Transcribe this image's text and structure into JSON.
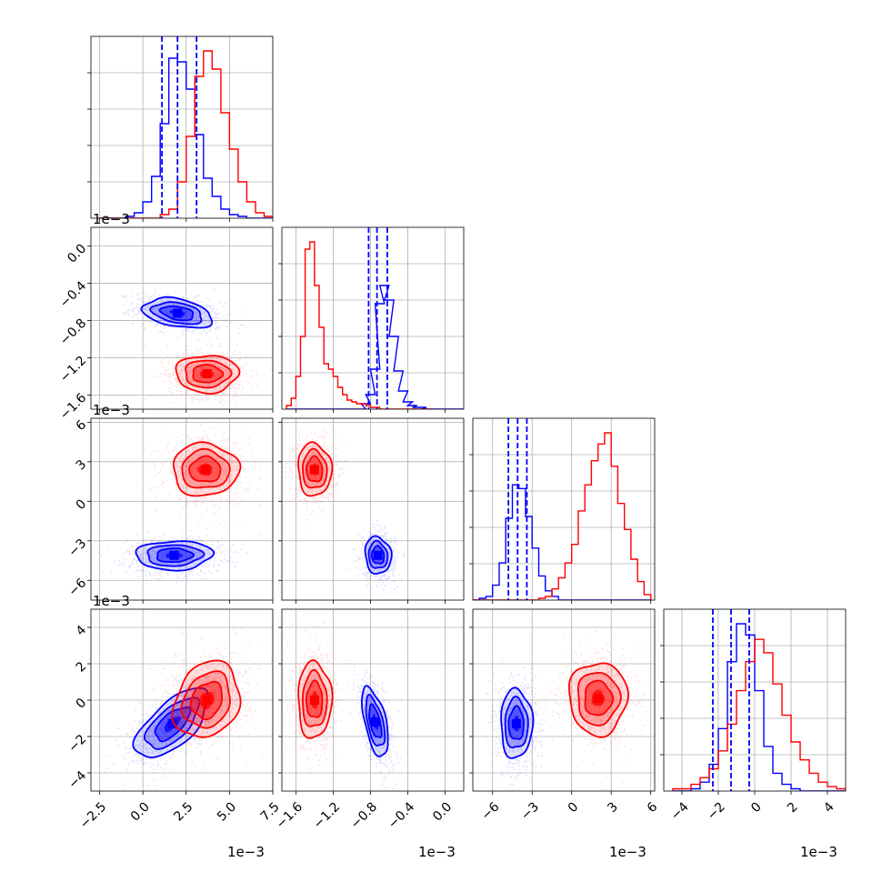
{
  "chart_data": {
    "type": "corner",
    "colors": {
      "blue": "#0000ff",
      "red": "#ff0000",
      "grid": "#b0b0b0"
    },
    "axes": {
      "v1": {
        "lim": [
          -3.0,
          7.5
        ],
        "ticks": [
          "-2.5",
          "0.0",
          "2.5",
          "5.0",
          "7.5"
        ],
        "tickvals": [
          -2.5,
          0,
          2.5,
          5,
          7.5
        ],
        "offset": "1e−3"
      },
      "v2": {
        "lim": [
          -1.75,
          0.2
        ],
        "ticks": [
          "-1.6",
          "-1.2",
          "-0.8",
          "-0.4",
          "0.0"
        ],
        "tickvals": [
          -1.6,
          -1.2,
          -0.8,
          -0.4,
          0.0
        ],
        "offset": "1e−3"
      },
      "v3": {
        "lim": [
          -7.5,
          6.3
        ],
        "ticks": [
          "-6",
          "-3",
          "0",
          "3",
          "6"
        ],
        "tickvals": [
          -6,
          -3,
          0,
          3,
          6
        ],
        "offset": "1e−3"
      },
      "v4": {
        "lim": [
          -5.0,
          5.0
        ],
        "ticks": [
          "-4",
          "-2",
          "0",
          "2",
          "4"
        ],
        "tickvals": [
          -4,
          -2,
          0,
          2,
          4
        ],
        "offset": "1e−3"
      }
    },
    "blobs": {
      "v1,v2": {
        "blue": {
          "mu": [
            2.0,
            -0.72
          ],
          "sd": [
            1.0,
            0.08
          ],
          "rho": -0.35
        },
        "red": {
          "mu": [
            3.7,
            -1.37
          ],
          "sd": [
            0.9,
            0.1
          ],
          "rho": 0.0
        }
      },
      "v1,v3": {
        "blue": {
          "mu": [
            1.8,
            -4.1
          ],
          "sd": [
            1.1,
            0.55
          ],
          "rho": 0.05
        },
        "red": {
          "mu": [
            3.6,
            2.4
          ],
          "sd": [
            0.95,
            1.0
          ],
          "rho": 0.0
        }
      },
      "v2,v3": {
        "blue": {
          "mu": [
            -0.72,
            -4.1
          ],
          "sd": [
            0.07,
            0.7
          ],
          "rho": -0.1
        },
        "red": {
          "mu": [
            -1.4,
            2.4
          ],
          "sd": [
            0.09,
            1.0
          ],
          "rho": -0.05
        }
      },
      "v1,v4": {
        "blue": {
          "mu": [
            1.7,
            -1.3
          ],
          "sd": [
            1.05,
            0.95
          ],
          "rho": 0.65
        },
        "red": {
          "mu": [
            3.7,
            0.0
          ],
          "sd": [
            0.95,
            1.05
          ],
          "rho": 0.2
        }
      },
      "v2,v4": {
        "blue": {
          "mu": [
            -0.75,
            -1.2
          ],
          "sd": [
            0.07,
            0.95
          ],
          "rho": -0.55
        },
        "red": {
          "mu": [
            -1.4,
            0.0
          ],
          "sd": [
            0.09,
            1.05
          ],
          "rho": 0.0
        }
      },
      "v3,v4": {
        "blue": {
          "mu": [
            -4.2,
            -1.3
          ],
          "sd": [
            0.6,
            0.95
          ],
          "rho": 0.0
        },
        "red": {
          "mu": [
            2.0,
            0.1
          ],
          "sd": [
            1.1,
            1.0
          ],
          "rho": 0.0
        }
      }
    },
    "marginals": {
      "v1": {
        "blue": {
          "x": [
            -2.5,
            -2,
            -1.5,
            -1,
            -0.5,
            0,
            0.5,
            1,
            1.5,
            2,
            2.5,
            3,
            3.5,
            4,
            4.5,
            5,
            5.5,
            6,
            6.5,
            7
          ],
          "y": [
            0,
            0,
            0,
            1,
            3,
            9,
            23,
            52,
            88,
            86,
            71,
            46,
            22,
            12,
            5,
            2,
            1,
            0,
            0,
            0
          ]
        },
        "red": {
          "x": [
            -2.5,
            -2,
            -1.5,
            -1,
            -0.5,
            0,
            0.5,
            1,
            1.5,
            2,
            2.5,
            3,
            3.5,
            4,
            4.5,
            5,
            5.5,
            6,
            6.5,
            7
          ],
          "y": [
            0,
            0,
            0,
            0,
            0,
            0,
            0,
            2,
            5,
            20,
            45,
            78,
            92,
            82,
            58,
            38,
            20,
            9,
            3,
            1
          ]
        },
        "quantiles": [
          1.1,
          2.0,
          3.1
        ]
      },
      "v2": {
        "blue": {
          "x": [
            -1.7,
            -1.6,
            -1.5,
            -1.4,
            -1.3,
            -1.2,
            -1.1,
            -1.0,
            -0.95,
            -0.9,
            -0.85,
            -0.8,
            -0.75,
            -0.7,
            -0.65,
            -0.6,
            -0.55,
            -0.5,
            -0.45,
            -0.4,
            -0.35,
            -0.3,
            -0.25,
            -0.2,
            -0.15,
            -0.1,
            -0.05,
            0.0,
            0.05,
            0.1,
            0.15
          ],
          "y": [
            0,
            0,
            0,
            0,
            0,
            0,
            0,
            0,
            0,
            3,
            8,
            22,
            58,
            68,
            60,
            40,
            21,
            10,
            4,
            2,
            1,
            1,
            0,
            0,
            0,
            0,
            0,
            0,
            0,
            0,
            0
          ]
        },
        "red": {
          "x": [
            -1.7,
            -1.65,
            -1.6,
            -1.55,
            -1.5,
            -1.45,
            -1.4,
            -1.35,
            -1.3,
            -1.25,
            -1.2,
            -1.15,
            -1.1,
            -1.05,
            -1.0,
            -0.95,
            -0.9,
            -0.85,
            -0.8,
            -0.75,
            -0.7,
            -0.65,
            -0.6,
            -0.55,
            -0.5,
            -0.45,
            -0.4,
            -0.35,
            -0.3,
            -0.25,
            -0.2
          ],
          "y": [
            2,
            6,
            18,
            40,
            88,
            92,
            68,
            45,
            25,
            22,
            18,
            12,
            8,
            5,
            4,
            3,
            3,
            2,
            1,
            1,
            0,
            0,
            0,
            0,
            0,
            0,
            0,
            0,
            0,
            0,
            0
          ]
        },
        "quantiles": [
          -0.82,
          -0.73,
          -0.62
        ]
      },
      "v3": {
        "blue": {
          "x": [
            -7.5,
            -7,
            -6.5,
            -6,
            -5.5,
            -5,
            -4.5,
            -4,
            -3.5,
            -3,
            -2.5,
            -2,
            -1.5,
            -1,
            -0.5,
            0,
            0.5,
            1,
            1.5,
            2,
            2.5,
            3,
            3.5,
            4,
            4.5,
            5,
            5.5
          ],
          "y": [
            0,
            1,
            2,
            8,
            20,
            44,
            62,
            60,
            45,
            28,
            13,
            5,
            2,
            0,
            0,
            0,
            0,
            0,
            0,
            0,
            0,
            0,
            0,
            0,
            0,
            0,
            0
          ]
        },
        "red": {
          "x": [
            -7.5,
            -7,
            -6.5,
            -6,
            -5.5,
            -5,
            -4.5,
            -4,
            -3.5,
            -3,
            -2.5,
            -2,
            -1.5,
            -1,
            -0.5,
            0,
            0.5,
            1,
            1.5,
            2,
            2.5,
            3,
            3.5,
            4,
            4.5,
            5,
            5.5
          ],
          "y": [
            0,
            0,
            0,
            0,
            0,
            0,
            0,
            0,
            0,
            0,
            1,
            2,
            6,
            12,
            20,
            30,
            48,
            62,
            75,
            84,
            90,
            72,
            52,
            38,
            22,
            10,
            3
          ]
        },
        "quantiles": [
          -4.8,
          -4.1,
          -3.4
        ]
      },
      "v4": {
        "blue": {
          "x": [
            -4.5,
            -4,
            -3.5,
            -3,
            -2.5,
            -2,
            -1.5,
            -1,
            -0.5,
            0,
            0.5,
            1,
            1.5,
            2,
            2.5,
            3,
            3.5,
            4,
            4.5
          ],
          "y": [
            0,
            0,
            1,
            4,
            12,
            28,
            58,
            75,
            70,
            45,
            20,
            8,
            3,
            1,
            0,
            0,
            0,
            0,
            0
          ]
        },
        "red": {
          "x": [
            -4.5,
            -4,
            -3.5,
            -3,
            -2.5,
            -2,
            -1.5,
            -1,
            -0.5,
            0,
            0.5,
            1,
            1.5,
            2,
            2.5,
            3,
            3.5,
            4,
            4.5
          ],
          "y": [
            1,
            1,
            3,
            6,
            10,
            18,
            30,
            45,
            58,
            68,
            62,
            48,
            34,
            22,
            14,
            8,
            4,
            2,
            1
          ]
        },
        "quantiles": [
          -2.3,
          -1.3,
          -0.3
        ]
      }
    }
  }
}
